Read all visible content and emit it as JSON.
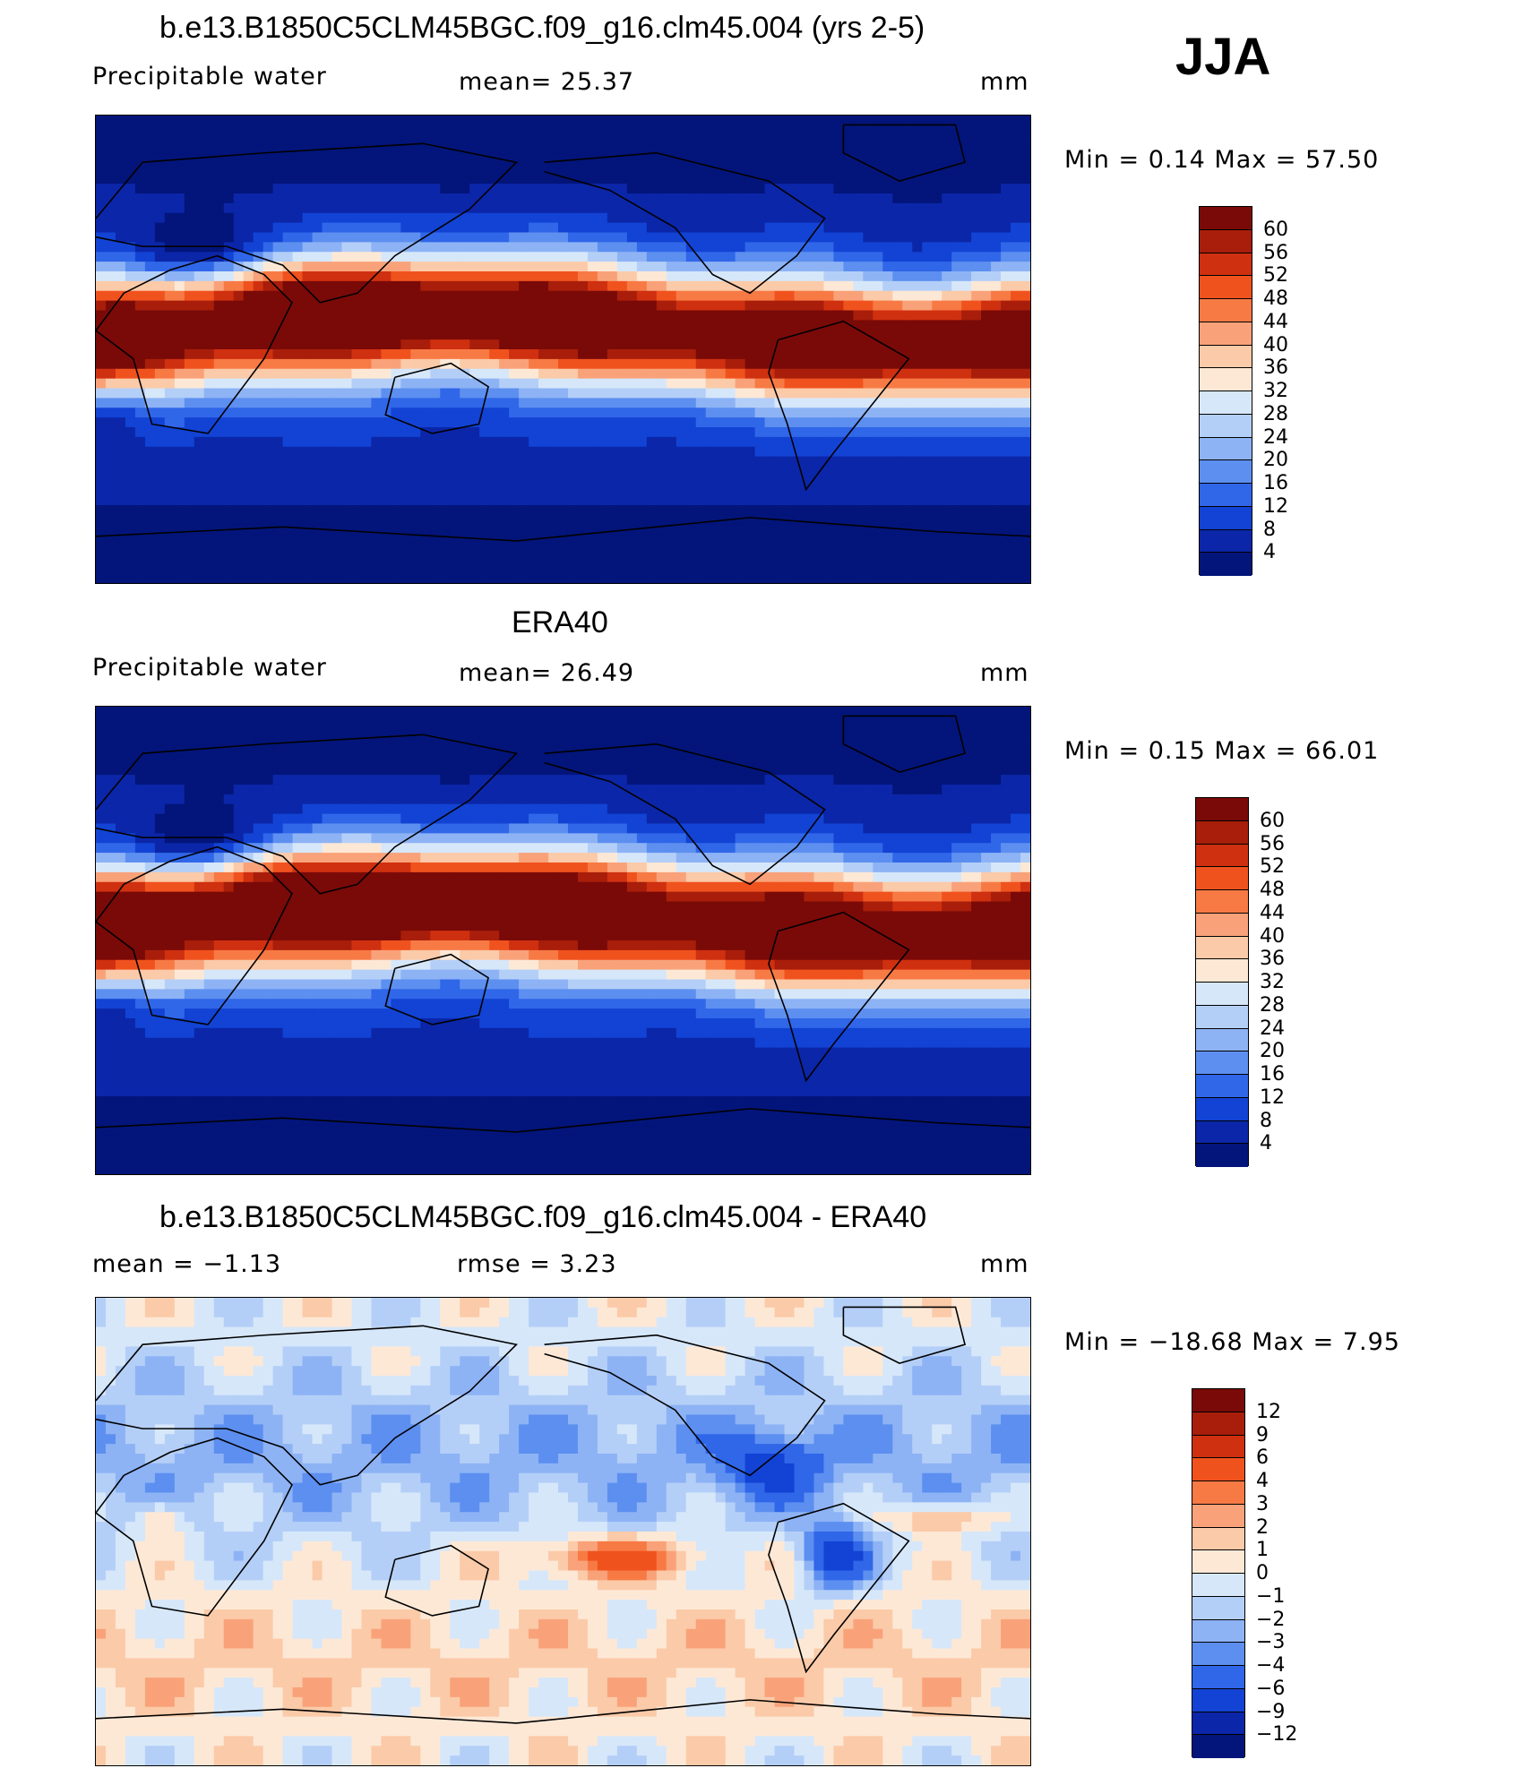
{
  "season": "JJA",
  "panels": [
    {
      "id": "model",
      "title": "b.e13.B1850C5CLM45BGC.f09_g16.clm45.004 (yrs 2-5)",
      "left_label": "Precipitable  water",
      "center_label": "mean=   25.37",
      "units": "mm",
      "minmax": "Min  =     0.14  Max  =     57.50",
      "field": "precipitable_water_model",
      "colorbar_labels": [
        "60",
        "56",
        "52",
        "48",
        "44",
        "40",
        "36",
        "32",
        "28",
        "24",
        "20",
        "16",
        "12",
        "8",
        "4"
      ]
    },
    {
      "id": "obs",
      "title": "ERA40",
      "left_label": "Precipitable  water",
      "center_label": "mean=   26.49",
      "units": "mm",
      "minmax": "Min  =     0.15  Max  =     66.01",
      "field": "precipitable_water_obs",
      "colorbar_labels": [
        "60",
        "56",
        "52",
        "48",
        "44",
        "40",
        "36",
        "32",
        "28",
        "24",
        "20",
        "16",
        "12",
        "8",
        "4"
      ]
    },
    {
      "id": "diff",
      "title": "b.e13.B1850C5CLM45BGC.f09_g16.clm45.004 - ERA40",
      "left_label": "mean  =    −1.13",
      "center_label": "rmse  =     3.23",
      "units": "mm",
      "minmax": "Min  = −18.68  Max  =      7.95",
      "field": "precipitable_water_diff",
      "colorbar_labels": [
        "12",
        "9",
        "6",
        "4",
        "3",
        "2",
        "1",
        "0",
        "−1",
        "−2",
        "−3",
        "−4",
        "−6",
        "−9",
        "−12"
      ]
    }
  ],
  "colors": {
    "abs_scale": [
      "#7a0a08",
      "#a81e0a",
      "#cf3010",
      "#f0521e",
      "#f77a45",
      "#f9a27a",
      "#fbcaa8",
      "#fde8d6",
      "#d6e7fa",
      "#b4cff7",
      "#8db3f5",
      "#5d8ff0",
      "#3066e8",
      "#1243d4",
      "#0b26a8",
      "#03157a"
    ],
    "diff_scale": [
      "#7a0a08",
      "#a81e0a",
      "#cf3010",
      "#f0521e",
      "#f77a45",
      "#f9a27a",
      "#fbcaa8",
      "#fde8d6",
      "#d6e7fa",
      "#b4cff7",
      "#8db3f5",
      "#5d8ff0",
      "#3066e8",
      "#1243d4",
      "#0b26a8",
      "#03157a"
    ],
    "coastline": "#000000"
  }
}
